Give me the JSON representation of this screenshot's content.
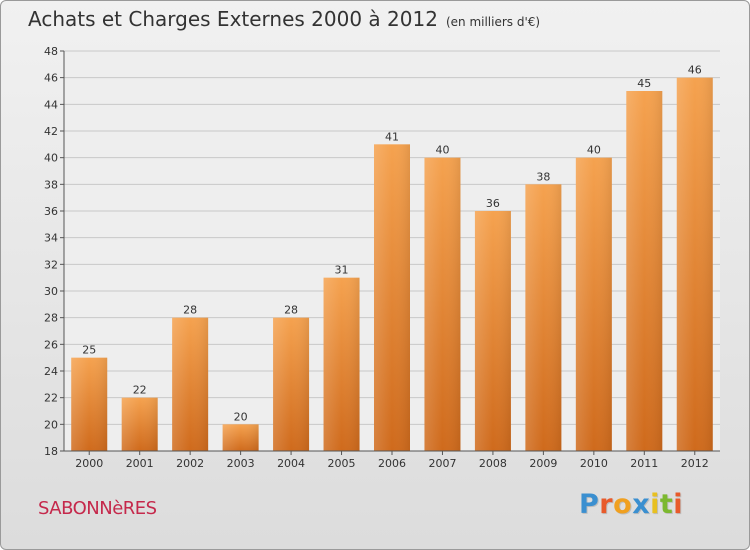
{
  "title": "Achats et Charges Externes 2000 à 2012",
  "subtitle": "(en milliers d'€)",
  "town": "SABONNèRES",
  "brand": {
    "letters": [
      "P",
      "r",
      "o",
      "x",
      "i",
      "t",
      "i"
    ],
    "colors": [
      "#3a8fd0",
      "#e85a2a",
      "#f0a020",
      "#3a8fd0",
      "#e8c020",
      "#7cb82f",
      "#e85a2a"
    ]
  },
  "colors": {
    "bar": "#f0913f",
    "bar_dark": "#d06a1c",
    "town": "#c5284b"
  },
  "chart_data": {
    "type": "bar",
    "title": "Achats et Charges Externes 2000 à 2012",
    "subtitle": "(en milliers d'€)",
    "categories": [
      "2000",
      "2001",
      "2002",
      "2003",
      "2004",
      "2005",
      "2006",
      "2007",
      "2008",
      "2009",
      "2010",
      "2011",
      "2012"
    ],
    "values": [
      25,
      22,
      28,
      20,
      28,
      31,
      41,
      40,
      36,
      38,
      40,
      45,
      46
    ],
    "ylim": [
      18,
      48
    ],
    "yticks": [
      18,
      20,
      22,
      24,
      26,
      28,
      30,
      32,
      34,
      36,
      38,
      40,
      42,
      44,
      46,
      48
    ],
    "grid": true,
    "xlabel": "",
    "ylabel": ""
  }
}
